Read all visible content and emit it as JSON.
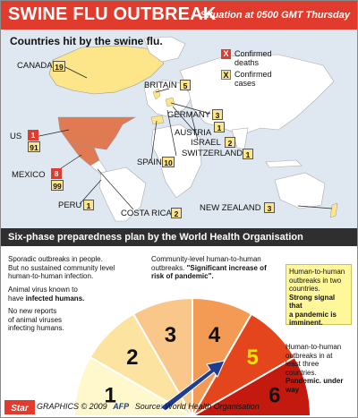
{
  "header": {
    "title": "SWINE FLU OUTBREAK",
    "situation": "Situation at 0500 GMT Thursday"
  },
  "map": {
    "subtitle": "Countries hit by the swine flu.",
    "legend": {
      "deaths_symbol": "X",
      "deaths_label_1": "Confirmed",
      "deaths_label_2": "deaths",
      "cases_symbol": "X",
      "cases_label_1": "Confirmed",
      "cases_label_2": "cases"
    },
    "countries": {
      "canada": {
        "name": "CANADA",
        "cases": "19"
      },
      "us": {
        "name": "US",
        "deaths": "1",
        "cases": "91"
      },
      "mexico": {
        "name": "MEXICO",
        "deaths": "8",
        "cases": "99"
      },
      "peru": {
        "name": "PERU",
        "cases": "1"
      },
      "costa_rica": {
        "name": "COSTA RICA",
        "cases": "2"
      },
      "britain": {
        "name": "BRITAIN",
        "cases": "5"
      },
      "germany": {
        "name": "GERMANY",
        "cases": "3"
      },
      "austria": {
        "name": "AUSTRIA",
        "cases": "1"
      },
      "israel": {
        "name": "ISRAEL",
        "cases": "2"
      },
      "spain": {
        "name": "SPAIN",
        "cases": "10"
      },
      "switzerland": {
        "name": "SWITZERLAND",
        "cases": "1"
      },
      "new_zealand": {
        "name": "NEW ZEALAND",
        "cases": "3"
      }
    },
    "colors": {
      "ocean": "#dfe8f0",
      "land": "#ffffff",
      "cases": "#fde58a",
      "deaths": "#e07a52"
    }
  },
  "plan": {
    "title": "Six-phase preparedness plan by the World Health Organisation",
    "phases": [
      {
        "number": "1",
        "color": "#fff8cc"
      },
      {
        "number": "2",
        "color": "#fde3a0"
      },
      {
        "number": "3",
        "color": "#f9c78a"
      },
      {
        "number": "4",
        "color": "#f39a55"
      },
      {
        "number": "5",
        "color": "#e5451d"
      },
      {
        "number": "6",
        "color": "#c4190f"
      }
    ],
    "current_phase_number_color": "#ffe600",
    "notes": {
      "phase1": [
        "No new reports",
        "of animal viruses",
        "infecting humans."
      ],
      "phase2_plain": [
        "Animal virus known to",
        "have "
      ],
      "phase2_bold": "infected humans.",
      "phase3": [
        "Sporadic outbreaks in people.",
        "But no sustained community level",
        "human-to-human infection."
      ],
      "phase4_plain": [
        "Community-level human-to-human",
        "outbreaks. "
      ],
      "phase4_bold": [
        "\"Significant increase of",
        "risk of pandemic\"."
      ],
      "phase5_plain": [
        "Human-to-human",
        "outbreaks in two",
        "countries."
      ],
      "phase5_bold": [
        "Strong signal that",
        "a pandemic is",
        "imminent."
      ],
      "phase6_plain": [
        "Human-to-human",
        "outbreaks in at",
        "least three",
        "countries."
      ],
      "phase6_bold": [
        "Pandemic. under",
        "way"
      ]
    }
  },
  "footer": {
    "logo_text": "Star",
    "credit_graphics": "GRAPHICS © 2009",
    "credit_agency": "AFP",
    "credit_source": "Source: World Health Organisation"
  }
}
